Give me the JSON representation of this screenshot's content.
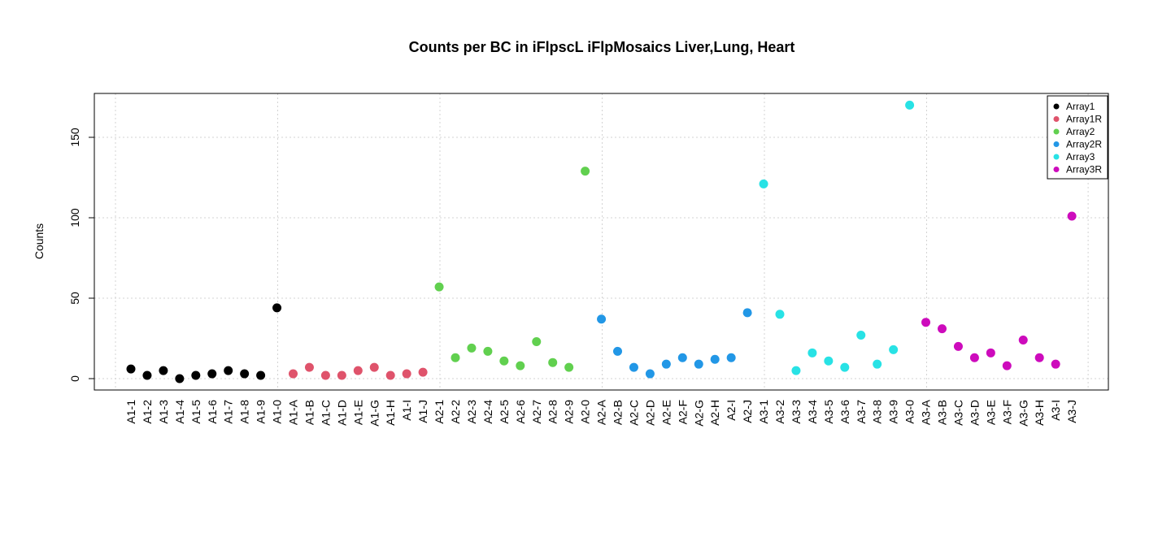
{
  "chart_data": {
    "type": "scatter",
    "title": "Counts per BC in iFlpscL iFlpMosaics Liver,Lung, Heart",
    "xlabel": "",
    "ylabel": "Counts",
    "ylim": [
      -7,
      177
    ],
    "yticks": [
      0,
      50,
      100,
      150
    ],
    "grid": true,
    "legend_position": "top-right",
    "categories": [
      "A1-1",
      "A1-2",
      "A1-3",
      "A1-4",
      "A1-5",
      "A1-6",
      "A1-7",
      "A1-8",
      "A1-9",
      "A1-0",
      "A1-A",
      "A1-B",
      "A1-C",
      "A1-D",
      "A1-E",
      "A1-G",
      "A1-H",
      "A1-I",
      "A1-J",
      "A2-1",
      "A2-2",
      "A2-3",
      "A2-4",
      "A2-5",
      "A2-6",
      "A2-7",
      "A2-8",
      "A2-9",
      "A2-0",
      "A2-A",
      "A2-B",
      "A2-C",
      "A2-D",
      "A2-E",
      "A2-F",
      "A2-G",
      "A2-H",
      "A2-I",
      "A2-J",
      "A3-1",
      "A3-2",
      "A3-3",
      "A3-4",
      "A3-5",
      "A3-6",
      "A3-7",
      "A3-8",
      "A3-9",
      "A3-0",
      "A3-A",
      "A3-B",
      "A3-C",
      "A3-D",
      "A3-E",
      "A3-F",
      "A3-G",
      "A3-H",
      "A3-I",
      "A3-J"
    ],
    "series": [
      {
        "name": "Array1",
        "color": "#000000",
        "values": [
          6,
          2,
          5,
          0,
          2,
          3,
          5,
          3,
          2,
          44
        ]
      },
      {
        "name": "Array1R",
        "color": "#DF536B",
        "values": [
          3,
          7,
          2,
          2,
          5,
          7,
          2,
          3,
          4
        ]
      },
      {
        "name": "Array2",
        "color": "#61D04F",
        "values": [
          57,
          13,
          19,
          17,
          11,
          8,
          23,
          10,
          7,
          129
        ]
      },
      {
        "name": "Array2R",
        "color": "#2297E6",
        "values": [
          37,
          17,
          7,
          3,
          9,
          13,
          9,
          12,
          13,
          41
        ]
      },
      {
        "name": "Array3",
        "color": "#28E2E5",
        "values": [
          121,
          40,
          5,
          16,
          11,
          7,
          27,
          9,
          18,
          170
        ]
      },
      {
        "name": "Array3R",
        "color": "#CD0BBC",
        "values": [
          35,
          31,
          20,
          13,
          16,
          8,
          24,
          13,
          9,
          101
        ]
      }
    ]
  }
}
